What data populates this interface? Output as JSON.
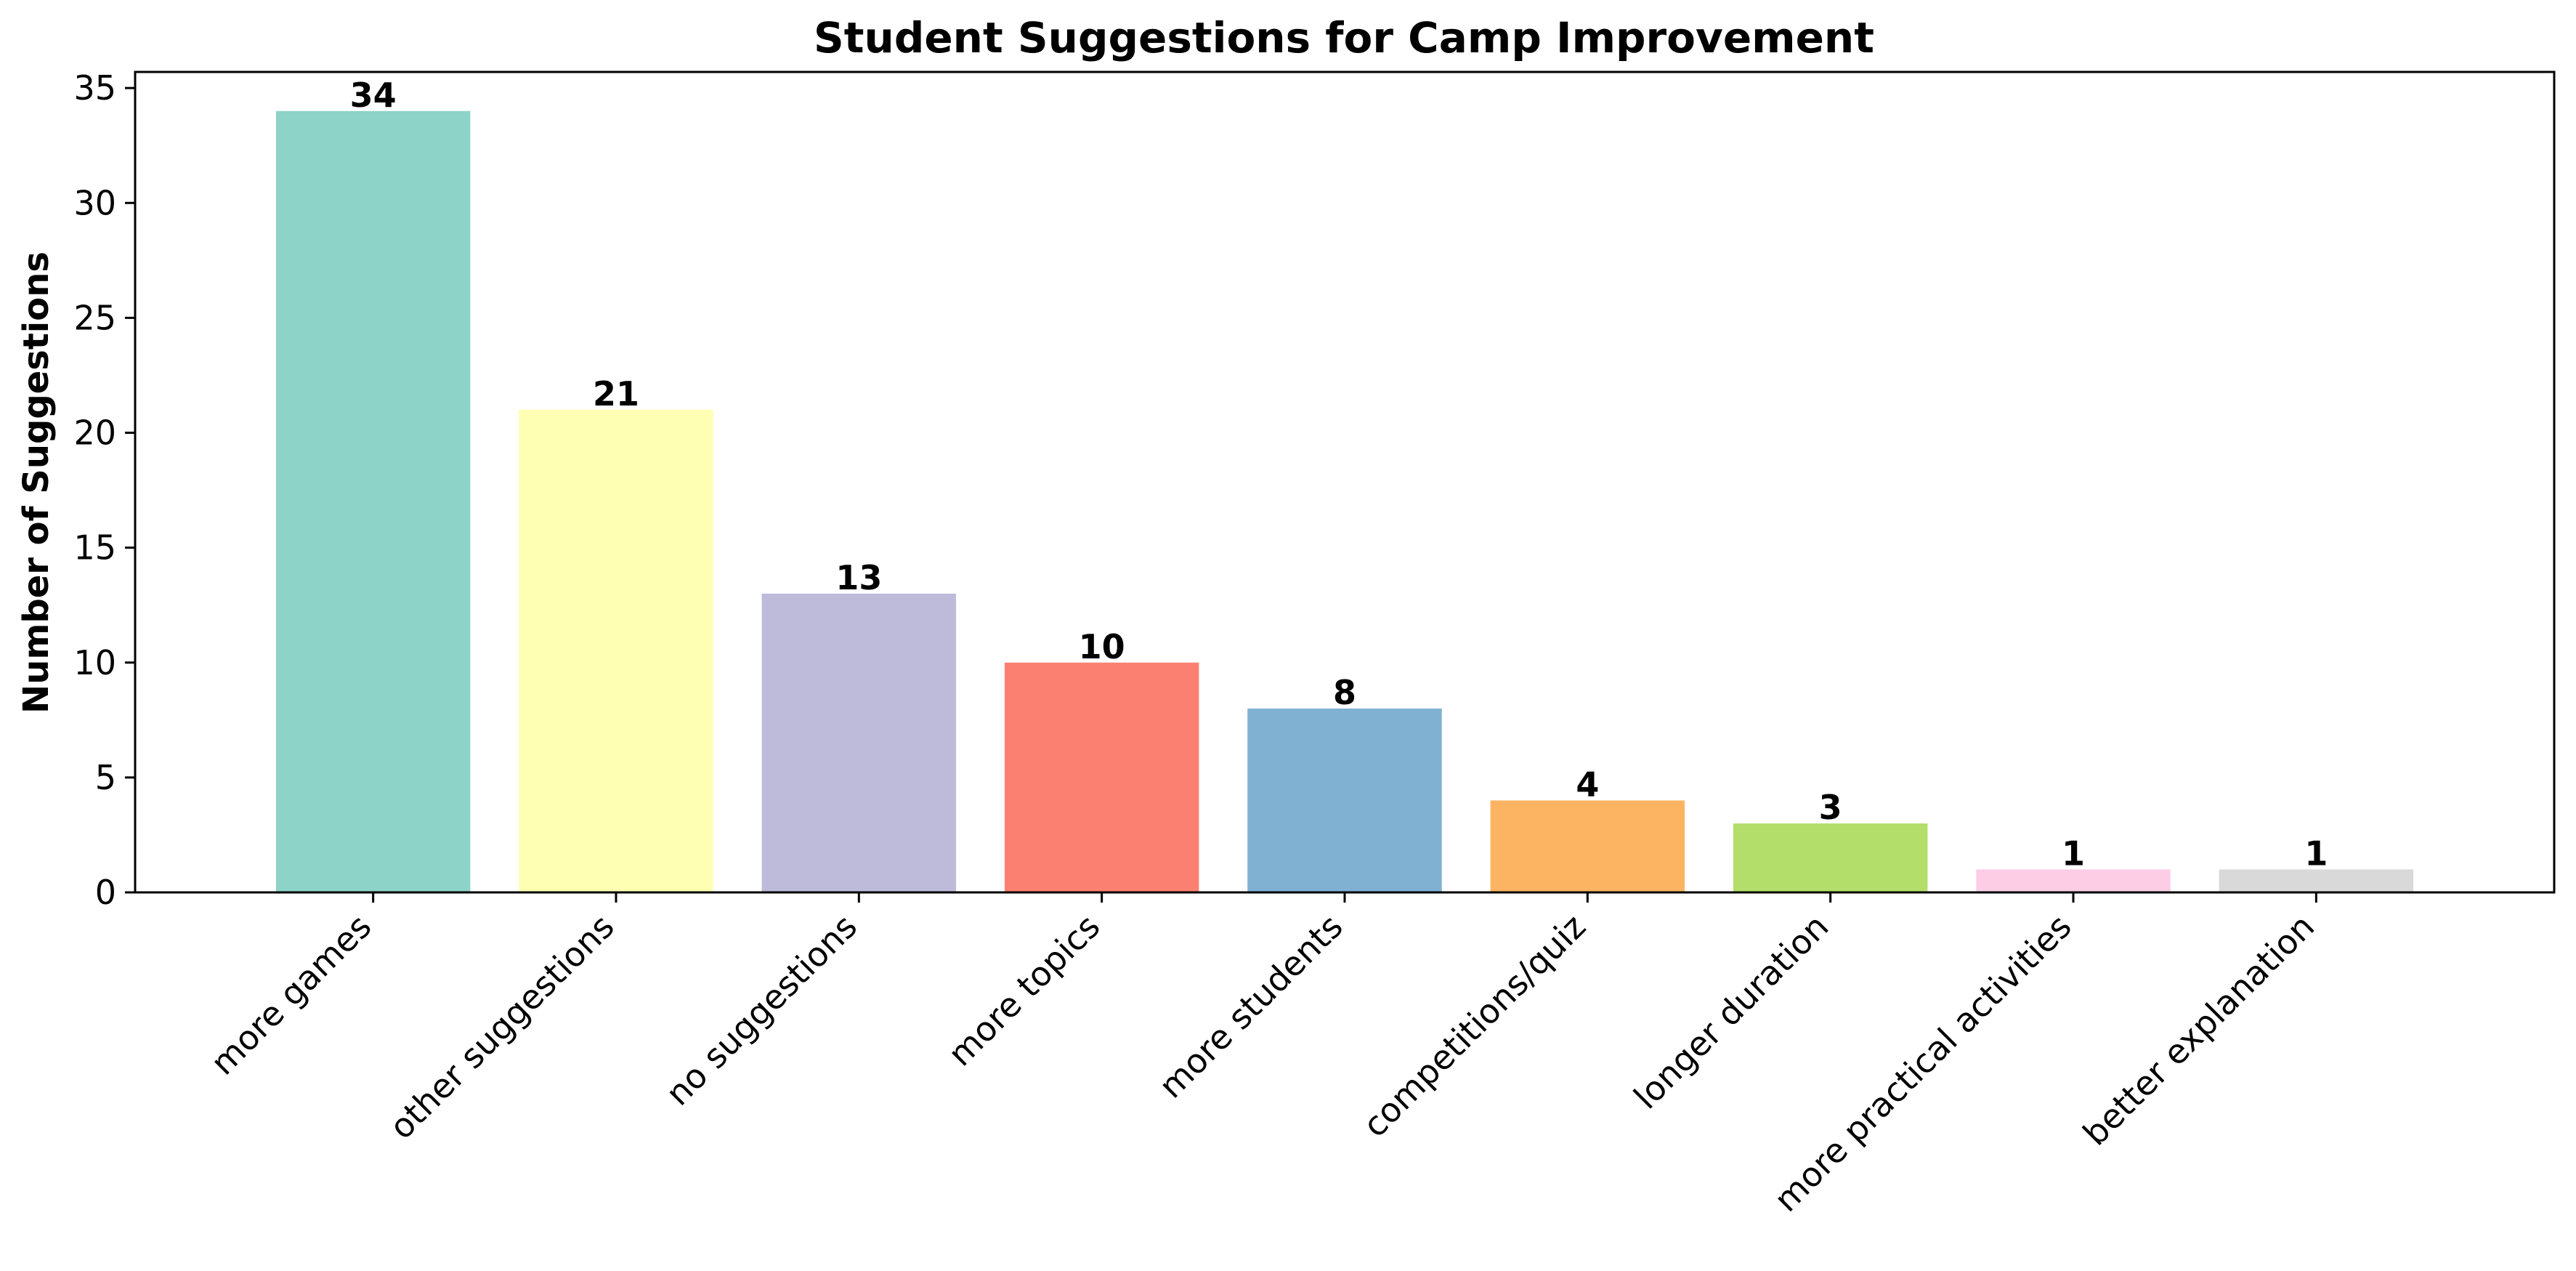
{
  "chart_data": {
    "type": "bar",
    "title": "Student Suggestions for Camp Improvement",
    "xlabel": "",
    "ylabel": "Number of Suggestions",
    "categories": [
      "more games",
      "other suggestions",
      "no suggestions",
      "more topics",
      "more students",
      "competitions/quiz",
      "longer duration",
      "more practical activities",
      "better explanation"
    ],
    "values": [
      34,
      21,
      13,
      10,
      8,
      4,
      3,
      1,
      1
    ],
    "colors": [
      "#8dd3c7",
      "#ffffb3",
      "#bebada",
      "#fb8072",
      "#80b1d3",
      "#fdb462",
      "#b3de69",
      "#fccde5",
      "#d9d9d9"
    ],
    "ylim": [
      0,
      35.7
    ],
    "yticks": [
      0,
      5,
      10,
      15,
      20,
      25,
      30,
      35
    ],
    "grid": false,
    "legend": "none",
    "data_labels": true
  }
}
